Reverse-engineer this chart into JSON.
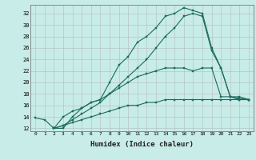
{
  "xlabel": "Humidex (Indice chaleur)",
  "background_color": "#c8ece8",
  "grid_color": "#b0b0b0",
  "line_color": "#1a6b5a",
  "xlim": [
    -0.5,
    23.5
  ],
  "ylim": [
    11.5,
    33.5
  ],
  "yticks": [
    12,
    14,
    16,
    18,
    20,
    22,
    24,
    26,
    28,
    30,
    32
  ],
  "xticks": [
    0,
    1,
    2,
    3,
    4,
    5,
    6,
    7,
    8,
    9,
    10,
    11,
    12,
    13,
    14,
    15,
    16,
    17,
    18,
    19,
    20,
    21,
    22,
    23
  ],
  "curve1_x": [
    0,
    1,
    2,
    3,
    4,
    5,
    6,
    7,
    8,
    9,
    10,
    11,
    12,
    13,
    14,
    15,
    16,
    17,
    18,
    19,
    20,
    21,
    22,
    23
  ],
  "curve1_y": [
    13.8,
    13.5,
    12.0,
    12.0,
    14.0,
    15.5,
    16.5,
    17.0,
    20.0,
    23.0,
    24.5,
    27.0,
    28.0,
    29.5,
    31.5,
    32.0,
    33.0,
    32.5,
    32.0,
    26.0,
    22.5,
    17.5,
    17.2,
    17.0
  ],
  "curve2_x": [
    2,
    3,
    4,
    5,
    6,
    7,
    8,
    9,
    10,
    11,
    12,
    13,
    14,
    15,
    16,
    17,
    18,
    19,
    20,
    21,
    22,
    23
  ],
  "curve2_y": [
    12.0,
    12.5,
    13.5,
    14.5,
    15.5,
    16.5,
    18.0,
    19.5,
    21.0,
    22.5,
    24.0,
    26.0,
    28.0,
    29.5,
    31.5,
    32.0,
    31.5,
    25.5,
    22.5,
    17.5,
    17.0,
    17.0
  ],
  "curve3_x": [
    2,
    3,
    4,
    5,
    6,
    7,
    8,
    9,
    10,
    11,
    12,
    13,
    14,
    15,
    16,
    17,
    18,
    19,
    20,
    21,
    22,
    23
  ],
  "curve3_y": [
    12.0,
    14.0,
    15.0,
    15.5,
    16.5,
    17.0,
    18.0,
    19.0,
    20.0,
    21.0,
    21.5,
    22.0,
    22.5,
    22.5,
    22.5,
    22.0,
    22.5,
    22.5,
    17.5,
    17.5,
    17.5,
    17.0
  ],
  "curve4_x": [
    2,
    3,
    4,
    5,
    6,
    7,
    8,
    9,
    10,
    11,
    12,
    13,
    14,
    15,
    16,
    17,
    18,
    19,
    20,
    21,
    22,
    23
  ],
  "curve4_y": [
    12.0,
    12.5,
    13.0,
    13.5,
    14.0,
    14.5,
    15.0,
    15.5,
    16.0,
    16.0,
    16.5,
    16.5,
    17.0,
    17.0,
    17.0,
    17.0,
    17.0,
    17.0,
    17.0,
    17.0,
    17.0,
    17.0
  ]
}
